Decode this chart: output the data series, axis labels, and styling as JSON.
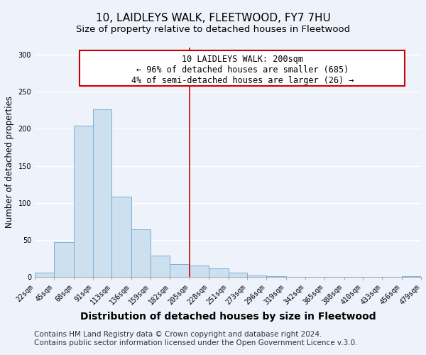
{
  "title": "10, LAIDLEYS WALK, FLEETWOOD, FY7 7HU",
  "subtitle": "Size of property relative to detached houses in Fleetwood",
  "xlabel": "Distribution of detached houses by size in Fleetwood",
  "ylabel": "Number of detached properties",
  "bar_color": "#cce0f0",
  "bar_edge_color": "#7ab0d4",
  "background_color": "#eef2fa",
  "plot_bg_color": "#eef2fa",
  "grid_color": "#ffffff",
  "bins": [
    22,
    45,
    68,
    91,
    113,
    136,
    159,
    182,
    205,
    228,
    251,
    273,
    296,
    319,
    342,
    365,
    388,
    410,
    433,
    456,
    479
  ],
  "bin_labels": [
    "22sqm",
    "45sqm",
    "68sqm",
    "91sqm",
    "113sqm",
    "136sqm",
    "159sqm",
    "182sqm",
    "205sqm",
    "228sqm",
    "251sqm",
    "273sqm",
    "296sqm",
    "319sqm",
    "342sqm",
    "365sqm",
    "388sqm",
    "410sqm",
    "433sqm",
    "456sqm",
    "479sqm"
  ],
  "counts": [
    5,
    47,
    204,
    226,
    108,
    64,
    29,
    17,
    15,
    11,
    5,
    2,
    1,
    0,
    0,
    0,
    0,
    0,
    0,
    1
  ],
  "vline_x": 205,
  "vline_color": "#cc0000",
  "annotation_title": "10 LAIDLEYS WALK: 200sqm",
  "annotation_left": "← 96% of detached houses are smaller (685)",
  "annotation_right": "4% of semi-detached houses are larger (26) →",
  "annotation_box_edge": "#cc0000",
  "footer1": "Contains HM Land Registry data © Crown copyright and database right 2024.",
  "footer2": "Contains public sector information licensed under the Open Government Licence v.3.0.",
  "ylim": [
    0,
    310
  ],
  "yticks": [
    0,
    50,
    100,
    150,
    200,
    250,
    300
  ],
  "title_fontsize": 11,
  "subtitle_fontsize": 9.5,
  "xlabel_fontsize": 10,
  "ylabel_fontsize": 8.5,
  "tick_fontsize": 7,
  "footer_fontsize": 7.5
}
